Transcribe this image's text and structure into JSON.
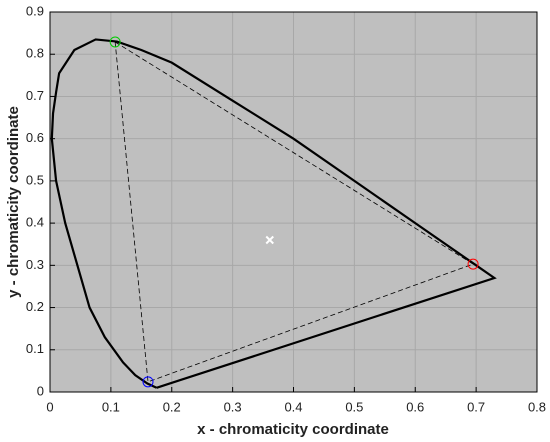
{
  "chart_data": {
    "type": "scatter",
    "xlabel": "x - chromaticity coordinate",
    "ylabel": "y - chromaticity coordinate",
    "xlim": [
      0,
      0.8
    ],
    "ylim": [
      0,
      0.9
    ],
    "xticks": [
      0,
      0.1,
      0.2,
      0.3,
      0.4,
      0.5,
      0.6,
      0.7,
      0.8
    ],
    "yticks": [
      0,
      0.1,
      0.2,
      0.3,
      0.4,
      0.5,
      0.6,
      0.7,
      0.8,
      0.9
    ],
    "grid": true,
    "background": "#bfbfbf",
    "series": [
      {
        "color": "#000000",
        "line": "solid",
        "marker": "none",
        "x": [
          0.175,
          0.16,
          0.14,
          0.12,
          0.09,
          0.065,
          0.045,
          0.025,
          0.01,
          0.003,
          0.005,
          0.01,
          0.015,
          0.04,
          0.075,
          0.11,
          0.15,
          0.2,
          0.3,
          0.4,
          0.5,
          0.6,
          0.7,
          0.73,
          0.175
        ],
        "y": [
          0.01,
          0.02,
          0.04,
          0.07,
          0.13,
          0.2,
          0.3,
          0.4,
          0.5,
          0.6,
          0.66,
          0.71,
          0.755,
          0.81,
          0.835,
          0.83,
          0.81,
          0.78,
          0.69,
          0.6,
          0.5,
          0.4,
          0.3,
          0.27,
          0.01
        ]
      },
      {
        "color": "#000000",
        "line": "dashed",
        "marker": "none",
        "x": [
          0.107,
          0.695,
          0.161,
          0.107
        ],
        "y": [
          0.829,
          0.303,
          0.024,
          0.829
        ]
      },
      {
        "color": "#ff0000",
        "line": "none",
        "marker": "o",
        "x": [
          0.695
        ],
        "y": [
          0.303
        ]
      },
      {
        "color": "#00cc00",
        "line": "none",
        "marker": "o",
        "x": [
          0.107
        ],
        "y": [
          0.829
        ]
      },
      {
        "color": "#0000ff",
        "line": "none",
        "marker": "o",
        "x": [
          0.161
        ],
        "y": [
          0.024
        ]
      },
      {
        "color": "#ffffff",
        "line": "none",
        "marker": "x",
        "x": [
          0.361
        ],
        "y": [
          0.36
        ]
      }
    ]
  }
}
